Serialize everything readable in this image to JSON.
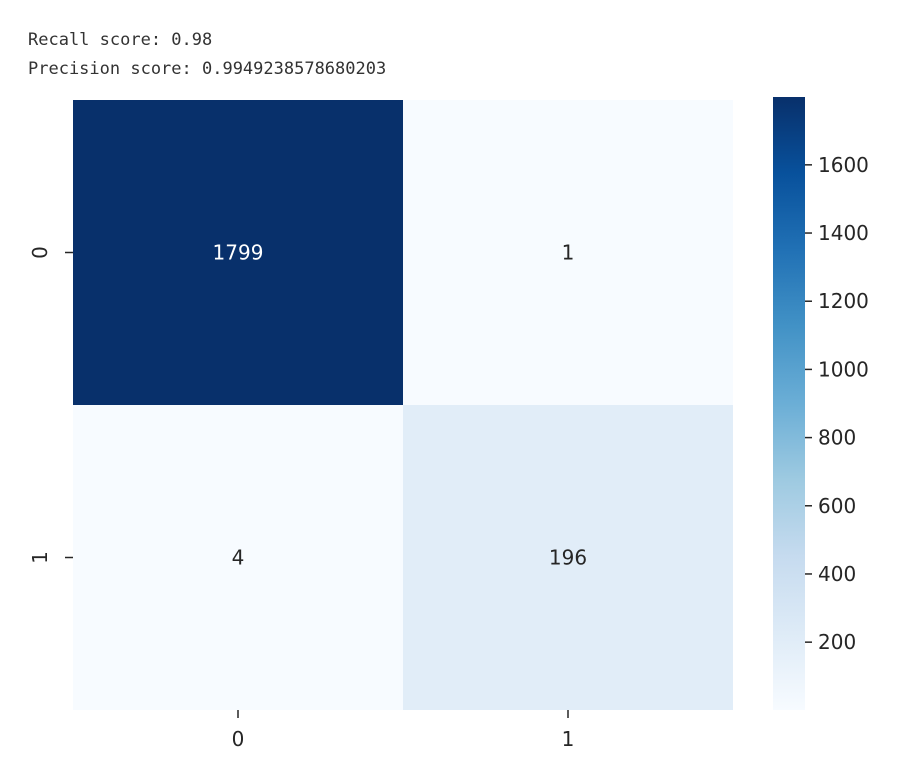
{
  "output": {
    "recall_line": "Recall score: 0.98",
    "precision_line": "Precision score: 0.9949238578680203"
  },
  "chart_data": {
    "type": "heatmap",
    "colormap": "Blues",
    "row_labels": [
      "0",
      "1"
    ],
    "col_labels": [
      "0",
      "1"
    ],
    "matrix": [
      [
        1799,
        1
      ],
      [
        4,
        196
      ]
    ],
    "vmin": 1,
    "vmax": 1799,
    "colorbar_ticks": [
      200,
      400,
      600,
      800,
      1000,
      1200,
      1400,
      1600
    ],
    "annotate": true
  }
}
